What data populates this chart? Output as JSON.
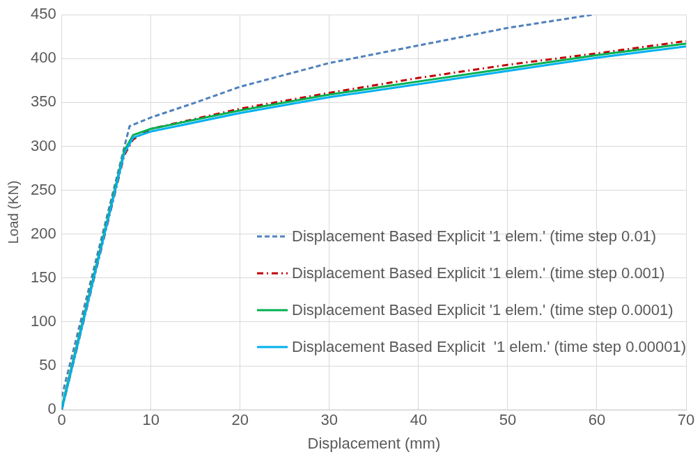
{
  "chart_data": {
    "type": "line",
    "xlabel": "Displacement (mm)",
    "ylabel": "Load (KN)",
    "xlim": [
      0,
      70
    ],
    "xticks": [
      0,
      10,
      20,
      30,
      40,
      50,
      60,
      70
    ],
    "ylim": [
      0,
      450
    ],
    "yticks": [
      0,
      50,
      100,
      150,
      200,
      250,
      300,
      350,
      400,
      450
    ],
    "grid": true,
    "legend": "bottom right",
    "marker": "none",
    "series": [
      {
        "name": "Displacement Based Explicit '1 elem.' (time step 0.01)",
        "color": "#4f81bd",
        "line_style": "dashed",
        "x": [
          0,
          7.6,
          10,
          15,
          20,
          30,
          40,
          50,
          59.5
        ],
        "values": [
          15,
          323,
          333,
          350,
          368,
          395,
          415,
          435,
          450
        ]
      },
      {
        "name": "Displacement Based Explicit '1 elem.' (time step 0.001)",
        "color": "#c00000",
        "line_style": "dashdot",
        "x": [
          0,
          7,
          8,
          10,
          20,
          30,
          40,
          50,
          60,
          70
        ],
        "values": [
          0,
          290,
          308,
          320,
          343,
          361,
          378,
          393,
          406,
          420
        ]
      },
      {
        "name": "Displacement Based Explicit '1 elem.' (time step 0.0001)",
        "color": "#00b050",
        "line_style": "solid",
        "x": [
          0,
          7,
          8,
          10,
          20,
          30,
          40,
          50,
          60,
          70
        ],
        "values": [
          3,
          295,
          313,
          320,
          341,
          359,
          374,
          389,
          404,
          417
        ]
      },
      {
        "name": "Displacement Based Explicit  '1 elem.' (time step 0.00001)",
        "color": "#00b0f0",
        "line_style": "solid",
        "x": [
          0,
          7,
          8,
          10,
          20,
          30,
          40,
          50,
          60,
          70
        ],
        "values": [
          0,
          292,
          310,
          317,
          338,
          356,
          371,
          386,
          401,
          414
        ]
      }
    ]
  }
}
